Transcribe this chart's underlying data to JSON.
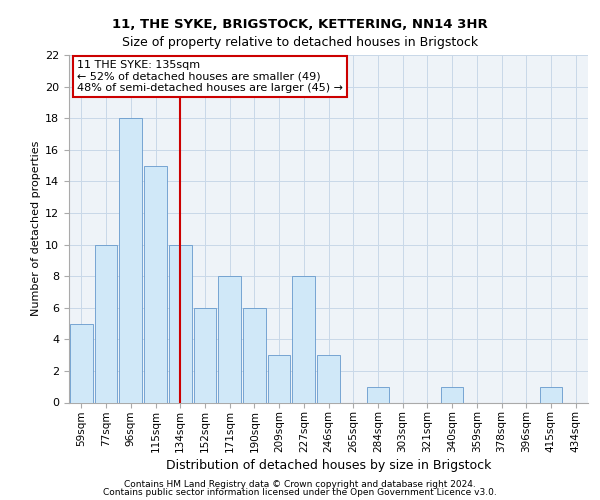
{
  "title1": "11, THE SYKE, BRIGSTOCK, KETTERING, NN14 3HR",
  "title2": "Size of property relative to detached houses in Brigstock",
  "xlabel": "Distribution of detached houses by size in Brigstock",
  "ylabel": "Number of detached properties",
  "footer1": "Contains HM Land Registry data © Crown copyright and database right 2024.",
  "footer2": "Contains public sector information licensed under the Open Government Licence v3.0.",
  "bins": [
    "59sqm",
    "77sqm",
    "96sqm",
    "115sqm",
    "134sqm",
    "152sqm",
    "171sqm",
    "190sqm",
    "209sqm",
    "227sqm",
    "246sqm",
    "265sqm",
    "284sqm",
    "303sqm",
    "321sqm",
    "340sqm",
    "359sqm",
    "378sqm",
    "396sqm",
    "415sqm",
    "434sqm"
  ],
  "values": [
    5,
    10,
    18,
    15,
    10,
    6,
    8,
    6,
    3,
    8,
    3,
    0,
    1,
    0,
    0,
    1,
    0,
    0,
    0,
    1,
    0
  ],
  "bar_color": "#d0e8f8",
  "bar_edge_color": "#6699cc",
  "highlight_index": 4,
  "highlight_line_color": "#cc0000",
  "ylim": [
    0,
    22
  ],
  "annotation_text": "11 THE SYKE: 135sqm\n← 52% of detached houses are smaller (49)\n48% of semi-detached houses are larger (45) →",
  "annotation_box_color": "#ffffff",
  "annotation_box_edge": "#cc0000",
  "grid_color": "#c8d8e8",
  "background_color": "#eef3f8",
  "title1_fontsize": 9.5,
  "title2_fontsize": 9,
  "ylabel_fontsize": 8,
  "xlabel_fontsize": 9,
  "tick_fontsize": 8,
  "xtick_fontsize": 7.5,
  "footer_fontsize": 6.5,
  "annot_fontsize": 8
}
